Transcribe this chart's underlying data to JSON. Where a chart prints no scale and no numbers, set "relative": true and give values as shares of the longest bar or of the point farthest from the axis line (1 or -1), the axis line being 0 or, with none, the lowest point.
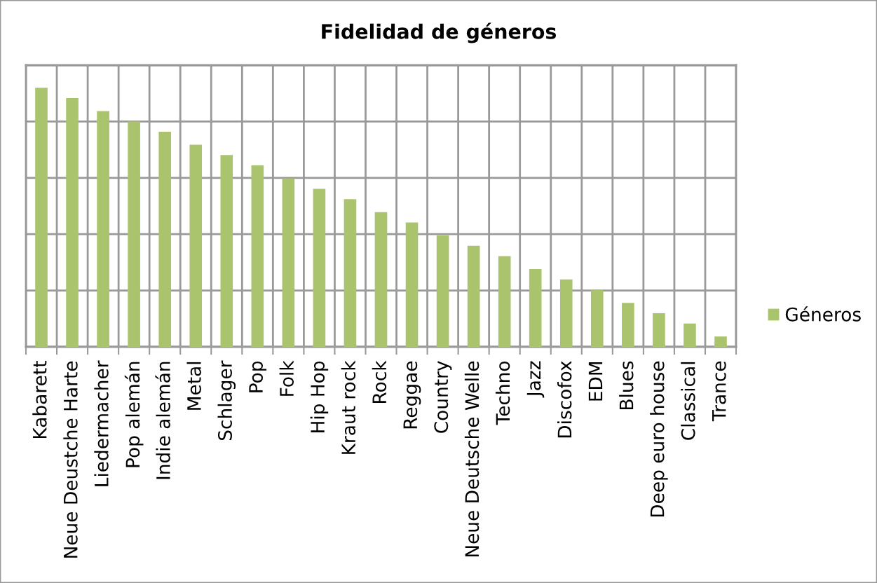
{
  "chart_data": {
    "type": "bar",
    "title": "Fidelidad de géneros",
    "categories": [
      "Kabarett",
      "Neue Deustche Harte",
      "Liedermacher",
      "Pop alemán",
      "Indie alemán",
      "Metal",
      "Schlager",
      "Pop",
      "Folk",
      "Hip Hop",
      "Kraut rock",
      "Rock",
      "Reggae",
      "Country",
      "Neue Deutsche Welle",
      "Techno",
      "Jazz",
      "Discofox",
      "EDM",
      "Blues",
      "Deep euro house",
      "Classical",
      "Trance"
    ],
    "series": [
      {
        "name": "Géneros",
        "color": "#a9c46c",
        "values": [
          1.0,
          0.96,
          0.91,
          0.87,
          0.83,
          0.78,
          0.74,
          0.7,
          0.65,
          0.61,
          0.57,
          0.52,
          0.48,
          0.43,
          0.39,
          0.35,
          0.3,
          0.26,
          0.22,
          0.17,
          0.13,
          0.09,
          0.04
        ]
      }
    ],
    "relative": true,
    "grid": true,
    "legend": "right",
    "tick_labels": "x"
  }
}
